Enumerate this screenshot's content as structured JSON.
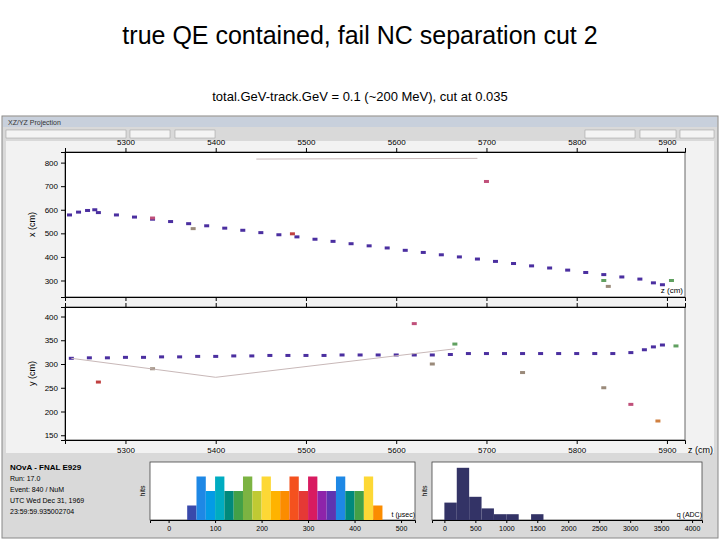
{
  "slide": {
    "title": "true QE contained, fail NC separation cut 2",
    "subtitle": "total.GeV-track.GeV = 0.1 (~200 MeV), cut at 0.035",
    "window_title": "XZ/YZ Projection",
    "info": [
      "NOvA - FNAL E929",
      "Run: 17.0",
      "Event: 840 / NuM",
      "UTC Wed Dec 31, 1969",
      "23:59:59.935002704"
    ]
  },
  "chart_data": [
    {
      "type": "scatter",
      "x_label": "z (cm)",
      "y_label": "x (cm)",
      "xlim": [
        5233,
        5920
      ],
      "ylim": [
        230,
        845
      ],
      "xticks": [
        5300,
        5400,
        5500,
        5600,
        5700,
        5800,
        5900
      ],
      "yticks": [
        300,
        400,
        500,
        600,
        700,
        800
      ],
      "series": [
        {
          "type": "scatter",
          "marker": "square",
          "color": "#4b2fa0",
          "x": [
            5238,
            5248,
            5258,
            5266,
            5270,
            5290,
            5310,
            5330,
            5350,
            5370,
            5390,
            5410,
            5430,
            5450,
            5470,
            5490,
            5510,
            5530,
            5550,
            5570,
            5590,
            5610,
            5630,
            5650,
            5670,
            5690,
            5710,
            5730,
            5750,
            5770,
            5790,
            5810,
            5830,
            5850,
            5870,
            5885,
            5895
          ],
          "values": [
            578,
            590,
            597,
            600,
            588,
            578,
            569,
            560,
            550,
            541,
            532,
            522,
            513,
            503,
            494,
            485,
            475,
            466,
            456,
            447,
            438,
            428,
            419,
            409,
            400,
            391,
            381,
            372,
            362,
            353,
            344,
            334,
            325,
            315,
            306,
            290,
            282
          ]
        },
        {
          "type": "scatter",
          "marker": "square",
          "colors": [
            "#c0507a",
            "#9a8a7a",
            "#c04040",
            "#60a060",
            "#60a060",
            "#9a8a7a",
            "#c0507a"
          ],
          "x": [
            5330,
            5375,
            5485,
            5830,
            5905,
            5835,
            5700
          ],
          "values": [
            565,
            520,
            498,
            300,
            300,
            275,
            720
          ]
        },
        {
          "type": "line",
          "line_style": "solid",
          "color": "#c8b8b8",
          "x": [
            5445,
            5690
          ],
          "values": [
            815,
            818
          ]
        }
      ]
    },
    {
      "type": "scatter",
      "x_label": "z (cm)",
      "y_label": "y (cm)",
      "xlim": [
        5233,
        5920
      ],
      "ylim": [
        140,
        420
      ],
      "xticks": [
        5300,
        5400,
        5500,
        5600,
        5700,
        5800,
        5900
      ],
      "yticks": [
        150,
        200,
        250,
        300,
        350,
        400
      ],
      "series": [
        {
          "type": "scatter",
          "marker": "square",
          "color": "#4b2fa0",
          "x": [
            5240,
            5260,
            5280,
            5300,
            5320,
            5340,
            5360,
            5380,
            5400,
            5420,
            5440,
            5460,
            5480,
            5500,
            5520,
            5540,
            5560,
            5580,
            5600,
            5620,
            5640,
            5660,
            5680,
            5700,
            5720,
            5740,
            5760,
            5780,
            5800,
            5820,
            5840,
            5860,
            5875,
            5885,
            5895
          ],
          "values": [
            312,
            313,
            313,
            314,
            314,
            315,
            315,
            316,
            316,
            317,
            317,
            318,
            318,
            318,
            318,
            319,
            319,
            319,
            319,
            319,
            319,
            320,
            322,
            322,
            322,
            322,
            322,
            322,
            322,
            322,
            322,
            324,
            330,
            336,
            340
          ]
        },
        {
          "type": "scatter",
          "marker": "square",
          "colors": [
            "#c04040",
            "#9a8a7a",
            "#c0507a",
            "#9a8a7a",
            "#9a8a7a",
            "#60a060",
            "#9a8a7a",
            "#c0507a",
            "#d08040",
            "#60a060"
          ],
          "x": [
            5270,
            5330,
            5620,
            5640,
            5740,
            5665,
            5830,
            5860,
            5890,
            5910
          ],
          "values": [
            262,
            290,
            385,
            300,
            282,
            342,
            250,
            215,
            180,
            338
          ]
        },
        {
          "type": "line",
          "line_style": "solid",
          "color": "#c8b8b8",
          "x": [
            5240,
            5400,
            5665
          ],
          "values": [
            312,
            272,
            332
          ]
        }
      ]
    },
    {
      "type": "histogram",
      "x_label": "t (μsec)",
      "y_label": "hits",
      "xlim": [
        -40,
        530
      ],
      "ylim": [
        0,
        4
      ],
      "tick_labels": "x",
      "xticks": [
        0,
        100,
        200,
        300,
        400,
        500
      ],
      "bins": [
        0,
        20,
        40,
        60,
        80,
        100,
        120,
        140,
        160,
        180,
        200,
        220,
        240,
        260,
        280,
        300,
        320,
        340,
        360,
        380,
        400,
        420,
        440,
        460,
        480
      ],
      "values": [
        0,
        0,
        1,
        3,
        2,
        3,
        2,
        2,
        3,
        2,
        3,
        2,
        2,
        3,
        2,
        3,
        2,
        2,
        3,
        2,
        2,
        3,
        1,
        0
      ],
      "colors": [
        "#6a1b9a",
        "#5e35b1",
        "#3949ab",
        "#1e88e5",
        "#039be5",
        "#00acc1",
        "#00897b",
        "#43a047",
        "#7cb342",
        "#c0ca33",
        "#fdd835",
        "#ffb300",
        "#fb8c00",
        "#f4511e",
        "#e53935",
        "#d81b60",
        "#8e24aa",
        "#5e35b1",
        "#1e88e5",
        "#00897b",
        "#43a047",
        "#fdd835",
        "#fb8c00",
        "#e53935"
      ]
    },
    {
      "type": "histogram",
      "x_label": "q (ADC)",
      "y_label": "hits",
      "xlim": [
        -200,
        4160
      ],
      "ylim": [
        0,
        10
      ],
      "tick_labels": "x",
      "xticks": [
        0,
        500,
        1000,
        1500,
        2000,
        2500,
        3000,
        3500,
        4000
      ],
      "bins": [
        0,
        200,
        400,
        600,
        800,
        1000,
        1200,
        1400,
        1600,
        1800,
        2000,
        2200,
        2400,
        2600,
        2800,
        3000,
        3200,
        3400,
        3600,
        3800,
        4000
      ],
      "values": [
        3,
        9,
        4,
        2,
        1,
        1,
        0,
        1,
        0,
        0,
        0,
        0,
        0,
        0,
        0,
        0,
        0,
        0,
        0,
        0
      ],
      "color": "#333366"
    }
  ]
}
